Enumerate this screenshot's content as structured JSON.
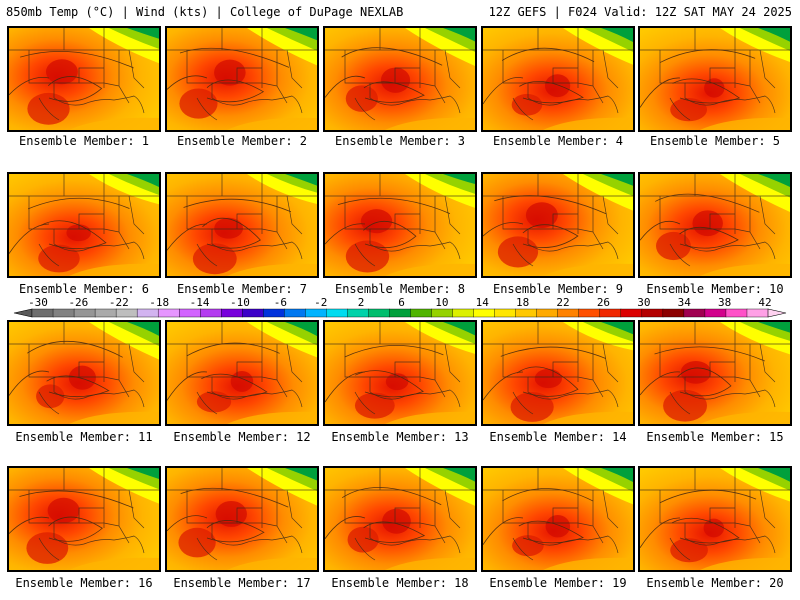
{
  "header": {
    "title_left": "850mb Temp (°C) | Wind (kts) | College of DuPage NEXLAB",
    "title_right": "12Z GEFS | F024 Valid: 12Z SAT MAY 24 2025"
  },
  "caption_prefix": "Ensemble Member: ",
  "members": [
    1,
    2,
    3,
    4,
    5,
    6,
    7,
    8,
    9,
    10,
    11,
    12,
    13,
    14,
    15,
    16,
    17,
    18,
    19,
    20
  ],
  "colorbar": {
    "labels": [
      "-30",
      "-26",
      "-22",
      "-18",
      "-14",
      "-10",
      "-6",
      "-2",
      "2",
      "6",
      "10",
      "14",
      "18",
      "22",
      "26",
      "30",
      "34",
      "38",
      "42"
    ],
    "colors": [
      "#6e6e6e",
      "#828282",
      "#969696",
      "#aaaaaa",
      "#bebebe",
      "#d2b4f0",
      "#e696ff",
      "#d264ff",
      "#b43cf0",
      "#7800dc",
      "#3c00c8",
      "#0032dc",
      "#0078f0",
      "#00b4ff",
      "#00dcf0",
      "#00d2aa",
      "#00be6e",
      "#00a03c",
      "#50b400",
      "#96d200",
      "#dcf000",
      "#ffff00",
      "#ffe600",
      "#ffc800",
      "#ffaa00",
      "#ff8200",
      "#ff5000",
      "#f02800",
      "#dc0000",
      "#b40000",
      "#8c0000",
      "#a00050",
      "#d2008c",
      "#ff50c8",
      "#ffa0e6"
    ]
  }
}
